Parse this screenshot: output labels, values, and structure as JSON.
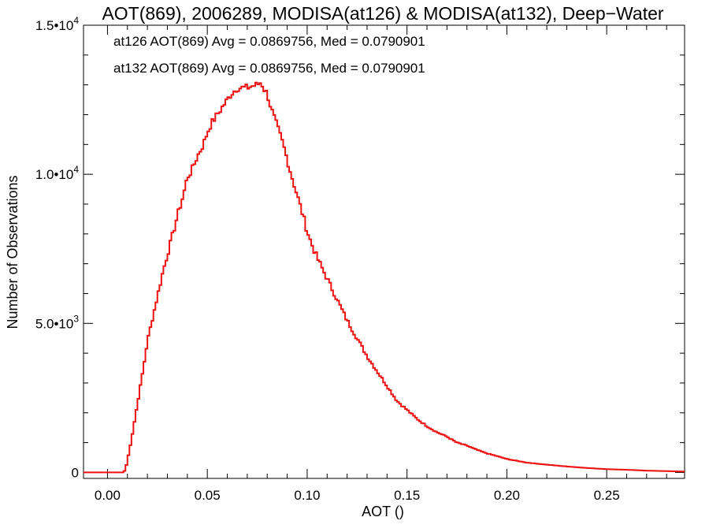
{
  "chart_data": {
    "type": "line",
    "title": "AOT(869), 2006289, MODISA(at126) & MODISA(at132), Deep−Water",
    "xlabel": "AOT ()",
    "ylabel": "Number of Observations",
    "xlim": [
      -0.012,
      0.289
    ],
    "ylim": [
      -200,
      15000
    ],
    "x_ticks": [
      {
        "value": 0.0,
        "label": "0.00"
      },
      {
        "value": 0.05,
        "label": "0.05"
      },
      {
        "value": 0.1,
        "label": "0.10"
      },
      {
        "value": 0.15,
        "label": "0.15"
      },
      {
        "value": 0.2,
        "label": "0.20"
      },
      {
        "value": 0.25,
        "label": "0.25"
      }
    ],
    "y_ticks": [
      {
        "value": 0,
        "mantissa": "0",
        "exponent": ""
      },
      {
        "value": 5000,
        "mantissa": "5.0•10",
        "exponent": "3"
      },
      {
        "value": 10000,
        "mantissa": "1.0•10",
        "exponent": "4"
      },
      {
        "value": 15000,
        "mantissa": "1.5•10",
        "exponent": "4"
      }
    ],
    "grid": false,
    "step": "histogram",
    "annotations": [
      {
        "text": "at126 AOT(869) Avg = 0.0869756, Med = 0.0790901",
        "color": "#000000"
      },
      {
        "text": "at132 AOT(869) Avg = 0.0869756, Med = 0.0790901",
        "color": "#ee1111"
      }
    ],
    "series": [
      {
        "color": "#ee1111",
        "x": [
          -0.012,
          0.0,
          0.005,
          0.008,
          0.009,
          0.01,
          0.012,
          0.014,
          0.016,
          0.018,
          0.02,
          0.022,
          0.025,
          0.028,
          0.03,
          0.032,
          0.035,
          0.038,
          0.04,
          0.042,
          0.045,
          0.048,
          0.05,
          0.052,
          0.055,
          0.058,
          0.06,
          0.062,
          0.065,
          0.068,
          0.07,
          0.072,
          0.075,
          0.077,
          0.078,
          0.08,
          0.082,
          0.085,
          0.088,
          0.09,
          0.092,
          0.095,
          0.098,
          0.1,
          0.102,
          0.105,
          0.11,
          0.115,
          0.12,
          0.125,
          0.13,
          0.135,
          0.14,
          0.145,
          0.15,
          0.155,
          0.16,
          0.165,
          0.17,
          0.175,
          0.18,
          0.185,
          0.19,
          0.195,
          0.2,
          0.21,
          0.22,
          0.23,
          0.24,
          0.25,
          0.26,
          0.27,
          0.28,
          0.289
        ],
        "y": [
          0,
          0,
          0,
          0,
          100,
          400,
          1100,
          1900,
          2700,
          3500,
          4400,
          5000,
          5900,
          6800,
          7300,
          7800,
          8600,
          9300,
          9900,
          10100,
          10600,
          11000,
          11400,
          11700,
          12000,
          12300,
          12500,
          12700,
          12900,
          12900,
          12900,
          12950,
          13000,
          13100,
          12900,
          12700,
          12200,
          11600,
          11000,
          10500,
          10000,
          9300,
          8600,
          8100,
          7700,
          7200,
          6500,
          5800,
          5100,
          4500,
          3900,
          3400,
          2900,
          2400,
          2100,
          1800,
          1550,
          1350,
          1200,
          1000,
          900,
          760,
          640,
          550,
          450,
          330,
          260,
          200,
          150,
          110,
          90,
          60,
          45,
          30
        ]
      }
    ]
  }
}
